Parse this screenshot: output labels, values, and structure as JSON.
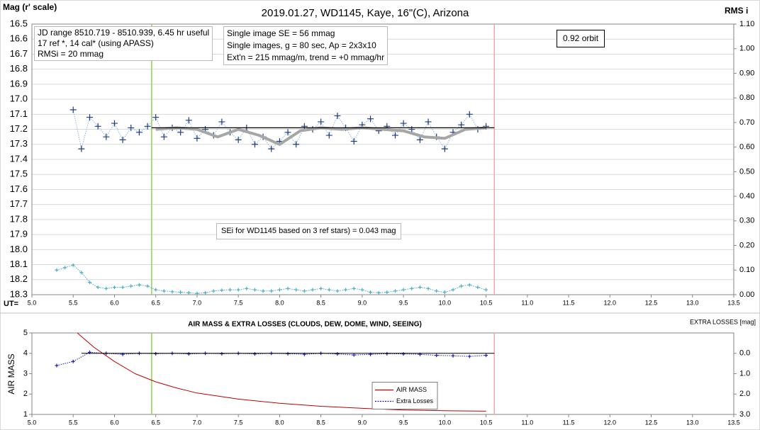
{
  "chart_data": [
    {
      "type": "scatter",
      "title": "2019.01.27, WD1145, Kaye, 16\"(C), Arizona",
      "y_label": "Mag (r' scale)",
      "y2_label": "RMS i",
      "x_label": "UT=",
      "annotations": [
        [
          "JD range 8510.719 - 8510.939, 6.45 hr useful",
          "17 ref *, 14 cal* (using APASS)",
          "RMSi = 20 mmag"
        ],
        [
          "Single image SE = 56 mmag",
          "Single images, g = 80 sec, Ap = 2x3x10",
          "Ext'n = 215 mmag/m, trend = +0 mmag/hr"
        ],
        [
          "0.92 orbit"
        ],
        [
          "SEi for WD1145 based on 3 ref stars) = 0.043 mag"
        ]
      ],
      "xlim": [
        5.0,
        13.5
      ],
      "xticks": [
        {
          "value": 5,
          "label": "5.0"
        },
        5.5,
        {
          "value": 6,
          "label": "6.0"
        },
        6.5,
        {
          "value": 7,
          "label": "7.0"
        },
        7.5,
        {
          "value": 8,
          "label": "8.0"
        },
        8.5,
        {
          "value": 9,
          "label": "9.0"
        },
        9.5,
        {
          "value": 10,
          "label": "10.0"
        },
        10.5,
        {
          "value": 11,
          "label": "11.0"
        },
        11.5,
        {
          "value": 12,
          "label": "12.0"
        },
        12.5,
        {
          "value": 13,
          "label": "13.0"
        },
        13.5
      ],
      "ylim": [
        18.3,
        16.5
      ],
      "yticks": [
        16.5,
        16.6,
        16.7,
        16.8,
        16.9,
        {
          "value": 17,
          "label": "17.0"
        },
        17.1,
        17.2,
        17.3,
        17.4,
        17.5,
        17.6,
        17.7,
        17.8,
        17.9,
        {
          "value": 18,
          "label": "18.0"
        },
        18.1,
        18.2,
        18.3
      ],
      "y2lim": [
        0,
        1.1
      ],
      "y2ticks": [
        {
          "value": 0,
          "label": "0.00"
        },
        {
          "value": 0.1,
          "label": "0.10"
        },
        {
          "value": 0.2,
          "label": "0.20"
        },
        {
          "value": 0.3,
          "label": "0.30"
        },
        {
          "value": 0.4,
          "label": "0.40"
        },
        {
          "value": 0.5,
          "label": "0.50"
        },
        {
          "value": 0.6,
          "label": "0.60"
        },
        {
          "value": 0.7,
          "label": "0.70"
        },
        {
          "value": 0.8,
          "label": "0.80"
        },
        {
          "value": 0.9,
          "label": "0.90"
        },
        {
          "value": 1,
          "label": "1.00"
        },
        {
          "value": 1.1,
          "label": "1.10"
        }
      ],
      "grid": true,
      "vertical_lines": [
        {
          "x": 6.45,
          "color": "#92d050"
        },
        {
          "x": 10.6,
          "color": "#f4a6a6"
        }
      ],
      "series": [
        {
          "style": "dotted-cross",
          "color": "#1f3f7f",
          "line_color": "#8db4e2",
          "x": [
            5.5,
            5.6,
            5.7,
            5.8,
            5.9,
            6.0,
            6.1,
            6.2,
            6.3,
            6.4,
            6.5,
            6.6,
            6.7,
            6.8,
            6.9,
            7.0,
            7.1,
            7.2,
            7.3,
            7.4,
            7.5,
            7.6,
            7.7,
            7.8,
            7.9,
            8.0,
            8.1,
            8.2,
            8.3,
            8.4,
            8.5,
            8.6,
            8.7,
            8.8,
            8.9,
            9.0,
            9.1,
            9.2,
            9.3,
            9.4,
            9.5,
            9.6,
            9.7,
            9.8,
            9.9,
            10.0,
            10.1,
            10.2,
            10.3,
            10.4,
            10.5
          ],
          "values": [
            17.07,
            17.33,
            17.12,
            17.18,
            17.25,
            17.16,
            17.27,
            17.19,
            17.22,
            17.18,
            17.12,
            17.25,
            17.19,
            17.22,
            17.14,
            17.26,
            17.2,
            17.24,
            17.15,
            17.22,
            17.27,
            17.19,
            17.3,
            17.25,
            17.33,
            17.28,
            17.22,
            17.3,
            17.18,
            17.2,
            17.15,
            17.24,
            17.11,
            17.19,
            17.28,
            17.17,
            17.13,
            17.21,
            17.18,
            17.24,
            17.16,
            17.2,
            17.27,
            17.15,
            17.25,
            17.33,
            17.22,
            17.17,
            17.1,
            17.2,
            17.18
          ]
        },
        {
          "style": "line",
          "color": "#a6a6a6",
          "width": 4,
          "x": [
            6.5,
            6.75,
            7.0,
            7.25,
            7.5,
            7.75,
            8.0,
            8.25,
            8.5,
            8.75,
            9.0,
            9.25,
            9.5,
            9.75,
            10.0,
            10.25,
            10.5
          ],
          "values": [
            17.2,
            17.19,
            17.2,
            17.25,
            17.2,
            17.24,
            17.3,
            17.21,
            17.19,
            17.2,
            17.19,
            17.2,
            17.21,
            17.25,
            17.26,
            17.2,
            17.19
          ]
        },
        {
          "style": "line",
          "color": "#000000",
          "width": 1.2,
          "x": [
            6.45,
            10.6
          ],
          "values": [
            17.19,
            17.19
          ]
        },
        {
          "style": "dotted-cross",
          "color": "#4bacc6",
          "line_color": "#4bacc6",
          "axis": "y2",
          "small": true,
          "x": [
            5.3,
            5.4,
            5.5,
            5.6,
            5.7,
            5.8,
            5.9,
            6.0,
            6.1,
            6.2,
            6.3,
            6.4,
            6.5,
            6.6,
            6.7,
            6.8,
            6.9,
            7.0,
            7.1,
            7.2,
            7.3,
            7.4,
            7.5,
            7.6,
            7.7,
            7.8,
            7.9,
            8.0,
            8.1,
            8.2,
            8.3,
            8.4,
            8.5,
            8.6,
            8.7,
            8.8,
            8.9,
            9.0,
            9.1,
            9.2,
            9.3,
            9.4,
            9.5,
            9.6,
            9.7,
            9.8,
            9.9,
            10.0,
            10.1,
            10.2,
            10.3,
            10.4,
            10.5
          ],
          "values": [
            0.1,
            0.11,
            0.12,
            0.09,
            0.05,
            0.03,
            0.025,
            0.03,
            0.03,
            0.035,
            0.04,
            0.035,
            0.02,
            0.015,
            0.012,
            0.01,
            0.008,
            0.005,
            0.008,
            0.015,
            0.018,
            0.02,
            0.02,
            0.025,
            0.02,
            0.015,
            0.015,
            0.02,
            0.025,
            0.02,
            0.015,
            0.02,
            0.025,
            0.02,
            0.015,
            0.02,
            0.025,
            0.02,
            0.01,
            0.008,
            0.01,
            0.015,
            0.02,
            0.025,
            0.03,
            0.025,
            0.015,
            0.01,
            0.02,
            0.035,
            0.04,
            0.03,
            0.02
          ]
        }
      ]
    },
    {
      "type": "scatter",
      "title": "AIR MASS & EXTRA LOSSES (CLOUDS, DEW, DOME, WIND, SEEING)",
      "y_label": "AIR MASS",
      "y2_label": "EXTRA LOSSES [mag]",
      "xlim": [
        5.0,
        13.5
      ],
      "xticks": [
        {
          "value": 5,
          "label": "5.0"
        },
        5.5,
        {
          "value": 6,
          "label": "6.0"
        },
        6.5,
        {
          "value": 7,
          "label": "7.0"
        },
        7.5,
        {
          "value": 8,
          "label": "8.0"
        },
        8.5,
        {
          "value": 9,
          "label": "9.0"
        },
        9.5,
        {
          "value": 10,
          "label": "10.0"
        },
        10.5,
        {
          "value": 11,
          "label": "11.0"
        },
        11.5,
        {
          "value": 12,
          "label": "12.0"
        },
        12.5,
        {
          "value": 13,
          "label": "13.0"
        },
        13.5
      ],
      "ylim": [
        1,
        5
      ],
      "yticks": [
        1,
        2,
        3,
        4,
        5
      ],
      "y2lim": [
        3.0,
        -1.0
      ],
      "y2ticks": [
        {
          "value": 0,
          "label": "0.0"
        },
        {
          "value": 1,
          "label": "1.0"
        },
        {
          "value": 2,
          "label": "2.0"
        },
        {
          "value": 3,
          "label": "3.0"
        }
      ],
      "grid": false,
      "legend": "center",
      "vertical_lines": [
        {
          "x": 6.45,
          "color": "#92d050"
        },
        {
          "x": 10.6,
          "color": "#f4a6a6"
        }
      ],
      "series": [
        {
          "name": "AIR MASS",
          "style": "line",
          "color": "#c00000",
          "width": 1,
          "x": [
            5.55,
            5.75,
            6.0,
            6.25,
            6.5,
            6.75,
            7.0,
            7.5,
            8.0,
            8.5,
            9.0,
            9.5,
            10.0,
            10.5
          ],
          "values": [
            5.0,
            4.3,
            3.6,
            3.0,
            2.6,
            2.3,
            2.05,
            1.75,
            1.55,
            1.4,
            1.3,
            1.22,
            1.18,
            1.16
          ]
        },
        {
          "name": "Extra Losses",
          "style": "dotted-cross",
          "color": "#1f1faf",
          "line_color": "#1f1faf",
          "axis": "y2",
          "small": true,
          "x": [
            5.3,
            5.5,
            5.7,
            5.9,
            6.1,
            6.3,
            6.5,
            6.7,
            6.9,
            7.1,
            7.3,
            7.5,
            7.7,
            7.9,
            8.1,
            8.3,
            8.5,
            8.7,
            8.9,
            9.1,
            9.3,
            9.5,
            9.7,
            9.9,
            10.1,
            10.3,
            10.5
          ],
          "values": [
            0.6,
            0.4,
            -0.05,
            0.0,
            0.05,
            0.0,
            0.02,
            0.0,
            0.03,
            0.0,
            0.02,
            0.0,
            0.03,
            0.0,
            0.02,
            0.05,
            0.0,
            0.03,
            0.08,
            0.05,
            0.02,
            0.03,
            0.05,
            0.1,
            0.12,
            0.15,
            0.1
          ]
        },
        {
          "style": "line",
          "color": "#000000",
          "width": 1,
          "axis": "y2",
          "x": [
            5.6,
            10.6
          ],
          "values": [
            0.0,
            0.0
          ]
        }
      ]
    }
  ]
}
